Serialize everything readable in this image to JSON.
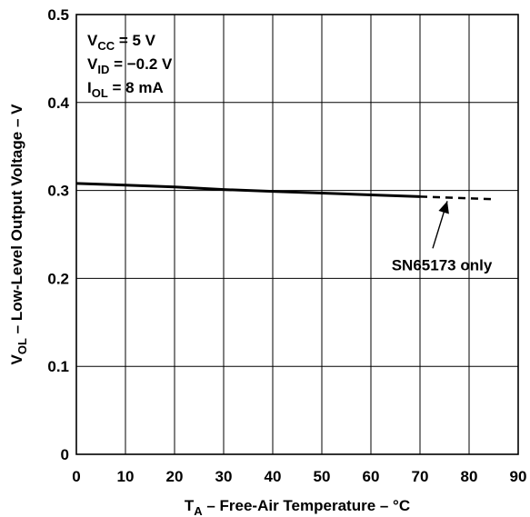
{
  "chart_data": {
    "type": "line",
    "xlabel": {
      "main": "T",
      "sub": "A",
      "rest": " – Free-Air Temperature – °C"
    },
    "ylabel": {
      "main": "V",
      "sub": "OL",
      "rest": " – Low-Level Output Voltage – V"
    },
    "xlim": [
      0,
      90
    ],
    "ylim": [
      0,
      0.5
    ],
    "x_ticks": [
      "0",
      "10",
      "20",
      "30",
      "40",
      "50",
      "60",
      "70",
      "80",
      "90"
    ],
    "y_ticks": [
      "0",
      "0.1",
      "0.2",
      "0.3",
      "0.4",
      "0.5"
    ],
    "grid": true,
    "conditions": [
      {
        "main": "V",
        "sub": "CC",
        "rest": " = 5 V"
      },
      {
        "main": "V",
        "sub": "ID",
        "rest": " = −0.2 V"
      },
      {
        "main": "I",
        "sub": "OL",
        "rest": " = 8 mA"
      }
    ],
    "series": [
      {
        "style": "solid",
        "x": [
          0,
          10,
          20,
          30,
          40,
          50,
          60,
          70
        ],
        "y": [
          0.308,
          0.306,
          0.304,
          0.301,
          0.299,
          0.297,
          0.295,
          0.293
        ]
      },
      {
        "style": "dashed",
        "x": [
          70,
          75,
          80,
          85
        ],
        "y": [
          0.293,
          0.292,
          0.291,
          0.29
        ]
      }
    ],
    "annotation": {
      "text": "SN65173 only",
      "points_to": [
        75,
        0.292
      ]
    }
  }
}
